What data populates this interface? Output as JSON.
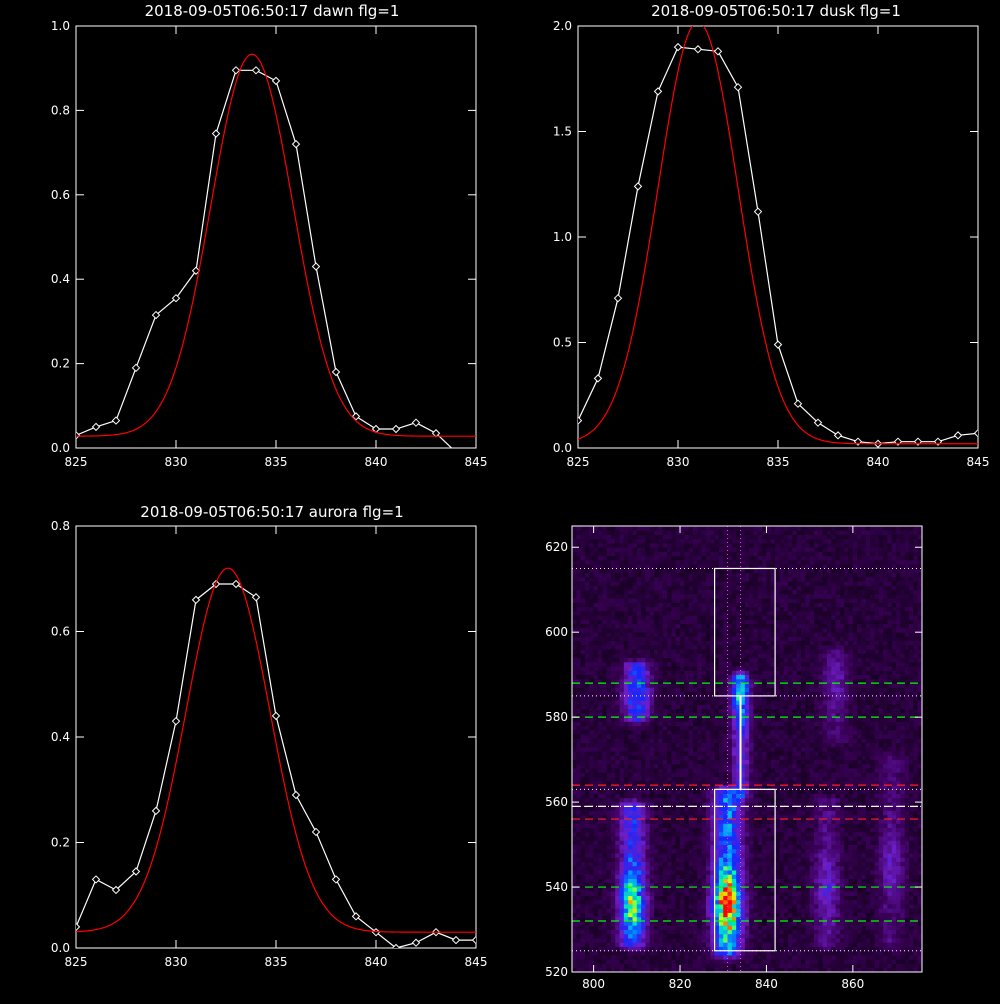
{
  "chart_data": [
    {
      "type": "line",
      "title": "2018-09-05T06:50:17 dawn flg=1",
      "xlim": [
        825,
        845
      ],
      "ylim": [
        0,
        1.0
      ],
      "xticks": [
        825,
        830,
        835,
        840,
        845
      ],
      "xtick_labels": [
        "825",
        "830",
        "835",
        "840",
        "845"
      ],
      "yticks": [
        0,
        0.2,
        0.4,
        0.6,
        0.8,
        1.0
      ],
      "ytick_labels": [
        "0.0",
        "0.2",
        "0.4",
        "0.6",
        "0.8",
        "1.0"
      ],
      "series": [
        {
          "kind": "measured",
          "color": "#ffffff",
          "marker": "diamond",
          "x": [
            825,
            826,
            827,
            828,
            829,
            830,
            831,
            832,
            833,
            834,
            835,
            836,
            837,
            838,
            839,
            840,
            841,
            842,
            843,
            844,
            845
          ],
          "y": [
            0.03,
            0.05,
            0.065,
            0.19,
            0.315,
            0.355,
            0.42,
            0.745,
            0.895,
            0.895,
            0.87,
            0.72,
            0.43,
            0.18,
            0.075,
            0.045,
            0.045,
            0.06,
            0.035,
            -0.01,
            -0.01
          ]
        },
        {
          "kind": "fit",
          "color": "#ff0000",
          "gauss": {
            "amp": 0.905,
            "center": 833.8,
            "sigma": 2.05,
            "offset": 0.028
          }
        }
      ]
    },
    {
      "type": "line",
      "title": "2018-09-05T06:50:17 dusk flg=1",
      "xlim": [
        825,
        845
      ],
      "ylim": [
        0,
        2.0
      ],
      "xticks": [
        825,
        830,
        835,
        840,
        845
      ],
      "xtick_labels": [
        "825",
        "830",
        "835",
        "840",
        "845"
      ],
      "yticks": [
        0,
        0.5,
        1.0,
        1.5,
        2.0
      ],
      "ytick_labels": [
        "0.0",
        "0.5",
        "1.0",
        "1.5",
        "2.0"
      ],
      "series": [
        {
          "kind": "measured",
          "color": "#ffffff",
          "marker": "diamond",
          "x": [
            825,
            826,
            827,
            828,
            829,
            830,
            831,
            832,
            833,
            834,
            835,
            836,
            837,
            838,
            839,
            840,
            841,
            842,
            843,
            844,
            845
          ],
          "y": [
            0.13,
            0.33,
            0.71,
            1.24,
            1.69,
            1.9,
            1.89,
            1.88,
            1.71,
            1.12,
            0.49,
            0.21,
            0.12,
            0.06,
            0.03,
            0.02,
            0.03,
            0.03,
            0.03,
            0.06,
            0.07
          ]
        },
        {
          "kind": "fit",
          "color": "#ff0000",
          "gauss": {
            "amp": 2.0,
            "center": 831.0,
            "sigma": 2.0,
            "offset": 0.02
          }
        }
      ]
    },
    {
      "type": "line",
      "title": "2018-09-05T06:50:17 aurora flg=1",
      "xlim": [
        825,
        845
      ],
      "ylim": [
        0,
        0.8
      ],
      "xticks": [
        825,
        830,
        835,
        840,
        845
      ],
      "xtick_labels": [
        "825",
        "830",
        "835",
        "840",
        "845"
      ],
      "yticks": [
        0,
        0.2,
        0.4,
        0.6,
        0.8
      ],
      "ytick_labels": [
        "0.0",
        "0.2",
        "0.4",
        "0.6",
        "0.8"
      ],
      "series": [
        {
          "kind": "measured",
          "color": "#ffffff",
          "marker": "diamond",
          "x": [
            825,
            826,
            827,
            828,
            829,
            830,
            831,
            832,
            833,
            834,
            835,
            836,
            837,
            838,
            839,
            840,
            841,
            842,
            843,
            844,
            845
          ],
          "y": [
            0.04,
            0.13,
            0.11,
            0.145,
            0.26,
            0.43,
            0.66,
            0.69,
            0.69,
            0.665,
            0.44,
            0.29,
            0.22,
            0.13,
            0.06,
            0.03,
            0.0,
            0.01,
            0.03,
            0.015,
            0.015
          ]
        },
        {
          "kind": "fit",
          "color": "#ff0000",
          "gauss": {
            "amp": 0.69,
            "center": 832.6,
            "sigma": 2.1,
            "offset": 0.03
          }
        }
      ]
    },
    {
      "type": "heatmap",
      "title": "",
      "xlim": [
        795,
        876
      ],
      "ylim": [
        520,
        625
      ],
      "xticks": [
        800,
        820,
        840,
        860
      ],
      "xtick_labels": [
        "800",
        "820",
        "840",
        "860"
      ],
      "yticks": [
        520,
        540,
        560,
        580,
        600,
        620
      ],
      "ytick_labels": [
        "520",
        "540",
        "560",
        "580",
        "600",
        "620"
      ],
      "sources": [
        {
          "x": 831,
          "y0": 525,
          "y1": 562,
          "sx": 2.2,
          "peak": 1.0,
          "core": 536
        },
        {
          "x": 834,
          "y0": 562,
          "y1": 589,
          "sx": 1.3,
          "peak": 0.6,
          "core": 586
        },
        {
          "x": 809,
          "y0": 527,
          "y1": 559,
          "sx": 2.0,
          "peak": 0.72,
          "core": 536
        },
        {
          "x": 810,
          "y0": 580,
          "y1": 592,
          "sx": 2.0,
          "peak": 0.42,
          "core": 586
        },
        {
          "x": 854,
          "y0": 527,
          "y1": 560,
          "sx": 2.0,
          "peak": 0.22,
          "core": 540
        },
        {
          "x": 869,
          "y0": 527,
          "y1": 570,
          "sx": 2.0,
          "peak": 0.18,
          "core": 545
        },
        {
          "x": 856,
          "y0": 575,
          "y1": 595,
          "sx": 2.0,
          "peak": 0.16,
          "core": 588
        }
      ],
      "boxes": [
        {
          "x0": 828,
          "x1": 842,
          "y0": 525,
          "y1": 563
        },
        {
          "x0": 828,
          "x1": 842,
          "y0": 585,
          "y1": 615
        }
      ],
      "dotted_hlines": [
        525,
        559,
        563,
        585,
        615
      ],
      "dotted_vlines": [
        831,
        834
      ],
      "dashed_hlines": [
        {
          "y": 532,
          "color": "#00ff00"
        },
        {
          "y": 540,
          "color": "#00ff00"
        },
        {
          "y": 556,
          "color": "#ff2020"
        },
        {
          "y": 559,
          "color": "#ffffff"
        },
        {
          "y": 564,
          "color": "#ff2020"
        },
        {
          "y": 580,
          "color": "#00ff00"
        },
        {
          "y": 588,
          "color": "#00ff00"
        }
      ],
      "profile_line": {
        "x": 834,
        "y0": 563,
        "y1": 585,
        "color": "#ffffff"
      }
    }
  ]
}
